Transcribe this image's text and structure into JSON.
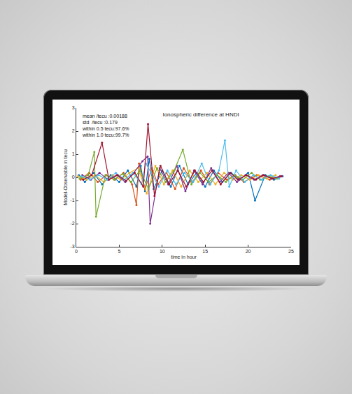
{
  "chart_data": {
    "type": "scatter",
    "title": "Ionospheric difference at HNDI",
    "x_label": "time in hour",
    "y_label": "Model-Observable in tecu",
    "annotations": [
      "mean /tecu :0.00188",
      "std  /tecu :0.179",
      "within 0.5 tecu:97.6%",
      "within 1.0 tecu:99.7%"
    ],
    "xlim": [
      0,
      25
    ],
    "xticks": [
      0,
      5,
      10,
      15,
      20,
      25
    ],
    "ylim": [
      -3,
      3
    ],
    "yticks": [
      -3,
      -2,
      -1,
      0,
      1,
      2,
      3
    ],
    "grid": false,
    "marker": "circle",
    "line_style": "solid",
    "series": [
      {
        "color": "#0072BD",
        "x": [
          0.3,
          1,
          2,
          3,
          4,
          5,
          6,
          7,
          7.5,
          8,
          8.5,
          9,
          10,
          11,
          12,
          13,
          14,
          15,
          16,
          17,
          18,
          19,
          20,
          20.8,
          22,
          23,
          24
        ],
        "values": [
          0.1,
          -0.2,
          0.2,
          -0.3,
          0.1,
          -0.2,
          0.3,
          -0.4,
          0.5,
          -0.6,
          0.8,
          -0.5,
          0.3,
          -0.4,
          0.5,
          -0.3,
          0.2,
          -0.4,
          0.3,
          -0.2,
          0.2,
          -0.1,
          0.2,
          -1.0,
          0.1,
          -0.1,
          0.05
        ]
      },
      {
        "color": "#D95319",
        "x": [
          0.5,
          1.5,
          2.5,
          3.5,
          4.5,
          5.5,
          6.5,
          7,
          7.3,
          8,
          8.8,
          9.5,
          10.5,
          11.5,
          12.5,
          13.5,
          14.5,
          15.5,
          16.5,
          17.5,
          18.5,
          19.5,
          21,
          22.5,
          23.8
        ],
        "values": [
          -0.1,
          0.2,
          -0.2,
          0.1,
          -0.1,
          0.2,
          -0.3,
          -1.2,
          0.6,
          -0.5,
          0.4,
          -0.3,
          0.2,
          -0.5,
          0.4,
          -0.2,
          0.3,
          -0.3,
          0.2,
          -0.1,
          0.1,
          -0.2,
          0.1,
          -0.1,
          0.05
        ]
      },
      {
        "color": "#EDB120",
        "x": [
          0.2,
          1.2,
          2.2,
          3.2,
          4.2,
          5.2,
          6.2,
          7.2,
          8.2,
          9.2,
          10.2,
          11.2,
          12.2,
          13.2,
          14.2,
          15.2,
          16.2,
          17.2,
          18.2,
          19.2,
          20.2,
          21.2,
          22.2,
          23.2
        ],
        "values": [
          0.05,
          -0.1,
          0.1,
          -0.2,
          0.1,
          -0.1,
          0.2,
          0.4,
          -0.7,
          0.5,
          -0.3,
          0.3,
          -0.4,
          0.3,
          -0.2,
          0.2,
          -0.3,
          0.2,
          -0.1,
          0.1,
          -0.1,
          0.1,
          -0.05,
          0.1
        ]
      },
      {
        "color": "#7E2F8E",
        "x": [
          0.7,
          1.7,
          2.7,
          3.7,
          4.7,
          5.7,
          6.7,
          7.7,
          8.3,
          8.6,
          9.7,
          10.7,
          11.7,
          12.7,
          13.7,
          14.7,
          15.7,
          16.7,
          17.7,
          18.7,
          19.7,
          20.7,
          21.7,
          22.7,
          23.7
        ],
        "values": [
          0.1,
          -0.1,
          0.2,
          -0.1,
          0.1,
          -0.2,
          0.2,
          0.7,
          0.9,
          -2.0,
          0.4,
          -0.3,
          0.5,
          -0.6,
          0.3,
          -0.3,
          0.4,
          -0.2,
          0.2,
          -0.2,
          0.1,
          -0.1,
          0.1,
          -0.05,
          0.05
        ]
      },
      {
        "color": "#77AC30",
        "x": [
          0.4,
          1.4,
          2.1,
          2.3,
          3.4,
          4.4,
          5.4,
          6.4,
          7.4,
          8.4,
          9.4,
          10.4,
          11.4,
          12.4,
          13.4,
          14.4,
          15.4,
          16.4,
          17.4,
          18.4,
          19.4,
          20.4,
          21.4,
          22.4,
          23.4
        ],
        "values": [
          -0.05,
          0.1,
          1.1,
          -1.7,
          0.1,
          -0.1,
          0.15,
          -0.2,
          0.3,
          -0.5,
          0.4,
          -0.2,
          0.3,
          1.2,
          -0.3,
          0.2,
          -0.2,
          0.1,
          -0.2,
          0.1,
          -0.1,
          0.2,
          -0.1,
          0.05,
          -0.05
        ]
      },
      {
        "color": "#4DBEEE",
        "x": [
          0.6,
          1.6,
          2.6,
          3.6,
          4.6,
          5.6,
          6.6,
          7.6,
          8.1,
          9.6,
          10.6,
          11.6,
          12.6,
          13.6,
          14.6,
          15.6,
          16.6,
          17.3,
          17.8,
          18.6,
          19.6,
          20.6,
          21.6,
          22.6,
          23.6
        ],
        "values": [
          0.05,
          -0.1,
          0.1,
          -0.1,
          0.2,
          -0.1,
          0.2,
          -0.3,
          0.6,
          -0.4,
          0.3,
          -0.3,
          0.2,
          -0.2,
          0.6,
          -0.3,
          0.3,
          1.6,
          -0.4,
          0.3,
          -0.2,
          0.1,
          -0.1,
          0.1,
          -0.05
        ]
      },
      {
        "color": "#A2142F",
        "x": [
          0.8,
          1.8,
          3.0,
          3.8,
          4.8,
          5.8,
          6.8,
          7.8,
          8.35,
          9.1,
          9.8,
          10.8,
          11.8,
          12.8,
          13.8,
          14.8,
          15.8,
          16.8,
          17.9,
          18.8,
          19.8,
          20.9,
          21.8,
          22.8,
          23.9
        ],
        "values": [
          -0.1,
          0.1,
          1.5,
          -0.1,
          0.1,
          -0.15,
          0.2,
          -0.4,
          2.3,
          -0.8,
          0.5,
          -0.3,
          0.3,
          -0.4,
          0.3,
          -0.2,
          0.3,
          -0.3,
          0.2,
          -0.1,
          0.1,
          -0.1,
          0.1,
          -0.05,
          0.05
        ]
      }
    ]
  }
}
